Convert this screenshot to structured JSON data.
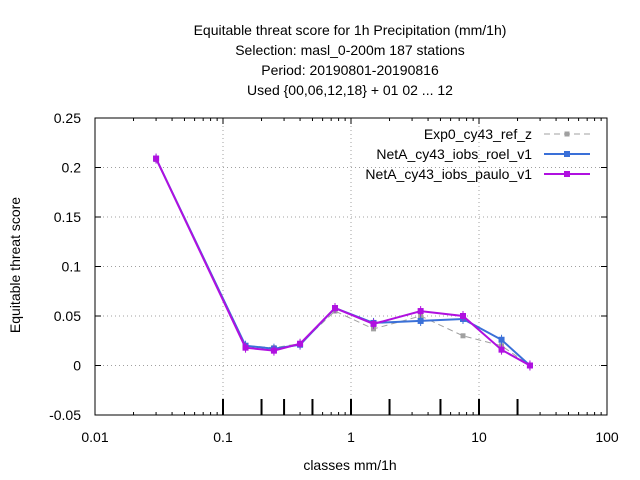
{
  "chart_data": {
    "type": "line",
    "title_lines": [
      "Equitable threat score  for 1h Precipitation (mm/1h)",
      "Selection: masl_0-200m    187 stations",
      "Period: 20190801-20190816",
      "Used {00,06,12,18} + 01 02 ... 12"
    ],
    "xlabel": "classes mm/1h",
    "ylabel": "Equitable threat score",
    "x_scale": "log",
    "xlim": [
      0.01,
      100
    ],
    "ylim": [
      -0.05,
      0.25
    ],
    "x_ticks": [
      0.01,
      0.1,
      1,
      10,
      100
    ],
    "x_tick_labels": [
      "0.01",
      "0.1",
      "1",
      "10",
      "100"
    ],
    "y_ticks": [
      -0.05,
      0,
      0.05,
      0.1,
      0.15,
      0.2,
      0.25
    ],
    "y_tick_labels": [
      "-0.05",
      "0",
      "0.05",
      "0.1",
      "0.15",
      "0.2",
      "0.25"
    ],
    "grid": true,
    "legend_position": "top-right",
    "class_markers": [
      0.1,
      0.2,
      0.3,
      0.5,
      1,
      2,
      5,
      10,
      20
    ],
    "x": [
      0.03,
      0.15,
      0.25,
      0.4,
      0.75,
      1.5,
      3.5,
      7.5,
      15,
      25
    ],
    "series": [
      {
        "name": "Exp0_cy43_ref_z",
        "color": "#a0a0a0",
        "dashed": true,
        "values": [
          0.208,
          0.02,
          0.018,
          0.022,
          0.055,
          0.037,
          0.05,
          0.03,
          0.02,
          0.0
        ]
      },
      {
        "name": "NetA_cy43_iobs_roel_v1",
        "color": "#3a70d8",
        "dashed": false,
        "values": [
          0.209,
          0.02,
          0.017,
          0.021,
          0.058,
          0.043,
          0.045,
          0.047,
          0.026,
          0.0
        ]
      },
      {
        "name": "NetA_cy43_iobs_paulo_v1",
        "color": "#b010e0",
        "dashed": false,
        "values": [
          0.209,
          0.018,
          0.015,
          0.022,
          0.058,
          0.042,
          0.055,
          0.05,
          0.016,
          0.0
        ]
      }
    ]
  }
}
